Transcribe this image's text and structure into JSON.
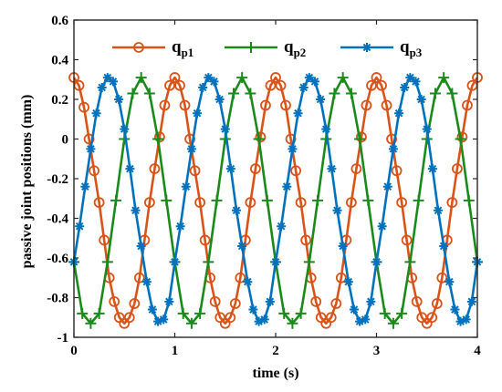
{
  "chart_data": {
    "type": "line",
    "title": "",
    "xlabel": "time (s)",
    "ylabel": "passive joint positions (mm)",
    "xlim": [
      0,
      4
    ],
    "ylim": [
      -1,
      0.6
    ],
    "xticks": [
      0,
      1,
      2,
      3,
      4
    ],
    "xtick_labels": [
      "0",
      "1",
      "2",
      "3",
      "4"
    ],
    "yticks": [
      -1,
      -0.8,
      -0.6,
      -0.4,
      -0.2,
      0,
      0.2,
      0.4,
      0.6
    ],
    "ytick_labels": [
      "-1",
      "-0.8",
      "-0.6",
      "-0.4",
      "-0.2",
      "0",
      "0.2",
      "0.4",
      "0.6"
    ],
    "grid": false,
    "legend_position": "top",
    "colors": {
      "qp1": "#D95319",
      "qp2": "#1A8A1A",
      "qp3": "#0072BD"
    },
    "series": [
      {
        "name": "q_p1",
        "legend_main": "q",
        "legend_sub": "p1",
        "marker": "circle",
        "color": "#D95319",
        "x": [
          0.0,
          0.05,
          0.1,
          0.15,
          0.2,
          0.25,
          0.3,
          0.35,
          0.4,
          0.45,
          0.5,
          0.55,
          0.6,
          0.65,
          0.7,
          0.75,
          0.8,
          0.85,
          0.9,
          0.95,
          1.0,
          1.05,
          1.1,
          1.15,
          1.2,
          1.25,
          1.3,
          1.35,
          1.4,
          1.45,
          1.5,
          1.55,
          1.6,
          1.65,
          1.7,
          1.75,
          1.8,
          1.85,
          1.9,
          1.95,
          2.0,
          2.05,
          2.1,
          2.15,
          2.2,
          2.25,
          2.3,
          2.35,
          2.4,
          2.45,
          2.5,
          2.55,
          2.6,
          2.65,
          2.7,
          2.75,
          2.8,
          2.85,
          2.9,
          2.95,
          3.0,
          3.05,
          3.1,
          3.15,
          3.2,
          3.25,
          3.3,
          3.35,
          3.4,
          3.45,
          3.5,
          3.55,
          3.6,
          3.65,
          3.7,
          3.75,
          3.8,
          3.85,
          3.9,
          3.95,
          4.0
        ],
        "y": [
          0.31,
          0.27,
          0.16,
          0.0,
          -0.16,
          -0.32,
          -0.51,
          -0.7,
          -0.82,
          -0.9,
          -0.93,
          -0.9,
          -0.83,
          -0.7,
          -0.51,
          -0.32,
          -0.15,
          0.01,
          0.17,
          0.27,
          0.31,
          0.27,
          0.17,
          0.0,
          -0.16,
          -0.32,
          -0.51,
          -0.7,
          -0.82,
          -0.9,
          -0.93,
          -0.9,
          -0.83,
          -0.7,
          -0.51,
          -0.32,
          -0.15,
          0.01,
          0.17,
          0.27,
          0.31,
          0.27,
          0.17,
          0.0,
          -0.16,
          -0.32,
          -0.51,
          -0.7,
          -0.82,
          -0.9,
          -0.93,
          -0.9,
          -0.83,
          -0.7,
          -0.51,
          -0.32,
          -0.15,
          0.01,
          0.17,
          0.27,
          0.31,
          0.27,
          0.17,
          0.0,
          -0.16,
          -0.32,
          -0.51,
          -0.7,
          -0.82,
          -0.9,
          -0.93,
          -0.9,
          -0.83,
          -0.7,
          -0.51,
          -0.32,
          -0.15,
          0.01,
          0.17,
          0.27,
          0.31
        ]
      },
      {
        "name": "q_p2",
        "legend_main": "q",
        "legend_sub": "p2",
        "marker": "plus",
        "color": "#1A8A1A",
        "x": [
          0.0,
          0.0833,
          0.1667,
          0.25,
          0.3333,
          0.4167,
          0.5,
          0.5833,
          0.6667,
          0.75,
          0.8333,
          0.9167,
          1.0,
          1.0833,
          1.1667,
          1.25,
          1.3333,
          1.4167,
          1.5,
          1.5833,
          1.6667,
          1.75,
          1.8333,
          1.9167,
          2.0,
          2.0833,
          2.1667,
          2.25,
          2.3333,
          2.4167,
          2.5,
          2.5833,
          2.6667,
          2.75,
          2.8333,
          2.9167,
          3.0,
          3.0833,
          3.1667,
          3.25,
          3.3333,
          3.4167,
          3.5,
          3.5833,
          3.6667,
          3.75,
          3.8333,
          3.9167,
          4.0
        ],
        "y": [
          -0.62,
          -0.88,
          -0.93,
          -0.88,
          -0.62,
          -0.31,
          0.0,
          0.23,
          0.31,
          0.23,
          0.0,
          -0.31,
          -0.62,
          -0.88,
          -0.93,
          -0.88,
          -0.62,
          -0.31,
          0.0,
          0.23,
          0.31,
          0.23,
          0.0,
          -0.31,
          -0.62,
          -0.88,
          -0.93,
          -0.88,
          -0.62,
          -0.31,
          0.0,
          0.23,
          0.31,
          0.23,
          0.0,
          -0.31,
          -0.62,
          -0.88,
          -0.93,
          -0.88,
          -0.62,
          -0.31,
          0.0,
          0.23,
          0.31,
          0.23,
          0.0,
          -0.31,
          -0.62
        ]
      },
      {
        "name": "q_p3",
        "legend_main": "q",
        "legend_sub": "p3",
        "marker": "asterisk",
        "color": "#0072BD",
        "x": [
          0.0,
          0.0556,
          0.1111,
          0.1667,
          0.2222,
          0.2778,
          0.3333,
          0.3889,
          0.4444,
          0.5,
          0.5556,
          0.6111,
          0.6667,
          0.7222,
          0.7778,
          0.8333,
          0.8889,
          0.9444,
          1.0,
          1.0556,
          1.1111,
          1.1667,
          1.2222,
          1.2778,
          1.3333,
          1.3889,
          1.4444,
          1.5,
          1.5556,
          1.6111,
          1.6667,
          1.7222,
          1.7778,
          1.8333,
          1.8889,
          1.9444,
          2.0,
          2.0556,
          2.1111,
          2.1667,
          2.2222,
          2.2778,
          2.3333,
          2.3889,
          2.4444,
          2.5,
          2.5556,
          2.6111,
          2.6667,
          2.7222,
          2.7778,
          2.8333,
          2.8889,
          2.9444,
          3.0,
          3.0556,
          3.1111,
          3.1667,
          3.2222,
          3.2778,
          3.3333,
          3.3889,
          3.4444,
          3.5,
          3.5556,
          3.6111,
          3.6667,
          3.7222,
          3.7778,
          3.8333,
          3.8889,
          3.9444,
          4.0
        ],
        "y": [
          -0.62,
          -0.44,
          -0.24,
          -0.05,
          0.13,
          0.26,
          0.31,
          0.29,
          0.2,
          0.05,
          -0.15,
          -0.36,
          -0.54,
          -0.72,
          -0.86,
          -0.92,
          -0.91,
          -0.82,
          -0.62,
          -0.44,
          -0.24,
          -0.05,
          0.13,
          0.26,
          0.31,
          0.29,
          0.2,
          0.05,
          -0.15,
          -0.36,
          -0.54,
          -0.72,
          -0.86,
          -0.92,
          -0.91,
          -0.82,
          -0.62,
          -0.44,
          -0.24,
          -0.05,
          0.13,
          0.26,
          0.31,
          0.29,
          0.2,
          0.05,
          -0.15,
          -0.36,
          -0.54,
          -0.72,
          -0.86,
          -0.92,
          -0.91,
          -0.82,
          -0.62,
          -0.44,
          -0.24,
          -0.05,
          0.13,
          0.26,
          0.31,
          0.29,
          0.2,
          0.05,
          -0.15,
          -0.36,
          -0.54,
          -0.72,
          -0.86,
          -0.92,
          -0.91,
          -0.82,
          -0.62
        ]
      }
    ]
  }
}
